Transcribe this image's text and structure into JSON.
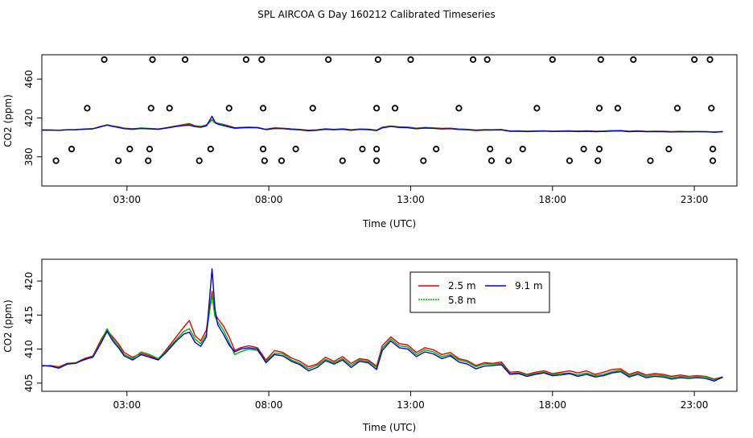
{
  "figure_title": "SPL AIRCOA G  Day 160212  Calibrated Timeseries",
  "colors": {
    "s25": "#e00000",
    "s58": "#00b000",
    "s91": "#0000d0"
  },
  "chart_data": [
    {
      "type": "line",
      "name": "top",
      "xlabel": "Time (UTC)",
      "ylabel": "CO2 (ppm)",
      "xlim": [
        0,
        24.5
      ],
      "ylim": [
        350,
        485
      ],
      "xticks": [
        3,
        8,
        13,
        18,
        23
      ],
      "xtick_labels": [
        "03:00",
        "08:00",
        "13:00",
        "18:00",
        "23:00"
      ],
      "yticks": [
        380,
        420,
        460
      ],
      "yticks_rotated_labels": [
        "380",
        "420",
        "460"
      ],
      "marker_series": {
        "name": "flagged samples",
        "points": [
          [
            2.2,
            480
          ],
          [
            3.9,
            480
          ],
          [
            5.05,
            480
          ],
          [
            7.2,
            480
          ],
          [
            7.75,
            480
          ],
          [
            10.1,
            480
          ],
          [
            11.85,
            480
          ],
          [
            13.0,
            480
          ],
          [
            15.2,
            480
          ],
          [
            15.7,
            480
          ],
          [
            18.0,
            480
          ],
          [
            19.7,
            480
          ],
          [
            20.85,
            480
          ],
          [
            23.0,
            480
          ],
          [
            23.55,
            480
          ],
          [
            1.6,
            430
          ],
          [
            3.85,
            430
          ],
          [
            4.5,
            430
          ],
          [
            6.6,
            430
          ],
          [
            7.8,
            430
          ],
          [
            9.55,
            430
          ],
          [
            11.8,
            430
          ],
          [
            12.45,
            430
          ],
          [
            14.7,
            430
          ],
          [
            17.45,
            430
          ],
          [
            19.65,
            430
          ],
          [
            20.3,
            430
          ],
          [
            22.4,
            430
          ],
          [
            23.6,
            430
          ],
          [
            1.05,
            388
          ],
          [
            3.1,
            388
          ],
          [
            3.8,
            388
          ],
          [
            5.95,
            388
          ],
          [
            7.8,
            388
          ],
          [
            8.95,
            388
          ],
          [
            11.3,
            388
          ],
          [
            11.8,
            388
          ],
          [
            13.9,
            388
          ],
          [
            15.8,
            388
          ],
          [
            16.95,
            388
          ],
          [
            19.1,
            388
          ],
          [
            19.65,
            388
          ],
          [
            22.1,
            388
          ],
          [
            23.65,
            388
          ],
          [
            0.5,
            376
          ],
          [
            2.7,
            376
          ],
          [
            3.75,
            376
          ],
          [
            5.55,
            376
          ],
          [
            7.85,
            376
          ],
          [
            8.45,
            376
          ],
          [
            10.6,
            376
          ],
          [
            11.8,
            376
          ],
          [
            13.45,
            376
          ],
          [
            15.85,
            376
          ],
          [
            16.45,
            376
          ],
          [
            18.6,
            376
          ],
          [
            19.6,
            376
          ],
          [
            21.45,
            376
          ],
          [
            23.65,
            376
          ]
        ]
      },
      "series_ref": "shared"
    },
    {
      "type": "line",
      "name": "bottom",
      "xlabel": "Time (UTC)",
      "ylabel": "CO2 (ppm)",
      "xlim": [
        0,
        24.5
      ],
      "ylim": [
        403.8,
        423.2
      ],
      "xticks": [
        3,
        8,
        13,
        18,
        23
      ],
      "xtick_labels": [
        "03:00",
        "08:00",
        "13:00",
        "18:00",
        "23:00"
      ],
      "yticks": [
        405,
        410,
        415,
        420
      ],
      "ytick_labels": [
        "405",
        "410",
        "415",
        "420"
      ],
      "legend": {
        "placement": "top-center",
        "entries": [
          "2.5 m",
          "5.8 m",
          "9.1 m"
        ]
      },
      "series_ref": "shared"
    }
  ],
  "series": [
    {
      "name": "2.5 m",
      "x": [
        0.0,
        0.3,
        0.6,
        0.9,
        1.2,
        1.5,
        1.8,
        2.1,
        2.3,
        2.5,
        2.7,
        2.9,
        3.2,
        3.5,
        3.8,
        4.1,
        4.4,
        4.7,
        5.0,
        5.2,
        5.4,
        5.6,
        5.8,
        6.0,
        6.1,
        6.2,
        6.4,
        6.6,
        6.8,
        7.0,
        7.3,
        7.6,
        7.9,
        8.2,
        8.5,
        8.8,
        9.1,
        9.4,
        9.7,
        10.0,
        10.3,
        10.6,
        10.9,
        11.2,
        11.5,
        11.8,
        12.0,
        12.3,
        12.6,
        12.9,
        13.2,
        13.5,
        13.8,
        14.1,
        14.4,
        14.7,
        15.0,
        15.3,
        15.6,
        15.9,
        16.2,
        16.5,
        16.8,
        17.1,
        17.4,
        17.7,
        18.0,
        18.3,
        18.6,
        18.9,
        19.2,
        19.5,
        19.8,
        20.1,
        20.4,
        20.7,
        21.0,
        21.3,
        21.6,
        21.9,
        22.2,
        22.5,
        22.8,
        23.1,
        23.4,
        23.7,
        24.0
      ],
      "y": [
        407.5,
        407.6,
        407.4,
        407.9,
        408.0,
        408.6,
        409.0,
        411.5,
        412.8,
        411.8,
        410.8,
        409.5,
        408.8,
        409.4,
        409.0,
        408.5,
        410.0,
        411.6,
        413.2,
        414.2,
        412.0,
        411.2,
        412.8,
        418.5,
        415.2,
        414.5,
        413.4,
        411.8,
        409.8,
        410.2,
        410.5,
        410.2,
        408.4,
        409.8,
        409.5,
        408.7,
        408.2,
        407.4,
        407.8,
        408.8,
        408.2,
        408.9,
        407.9,
        408.6,
        408.4,
        407.5,
        410.5,
        411.8,
        410.8,
        410.6,
        409.5,
        410.2,
        409.9,
        409.2,
        409.5,
        408.6,
        408.3,
        407.6,
        408.0,
        407.9,
        408.1,
        406.6,
        406.7,
        406.3,
        406.6,
        406.8,
        406.4,
        406.6,
        406.8,
        406.5,
        406.8,
        406.3,
        406.6,
        407.0,
        407.1,
        406.3,
        406.7,
        406.2,
        406.4,
        406.3,
        406.0,
        406.2,
        406.0,
        406.1,
        406.0,
        405.6,
        405.9
      ]
    },
    {
      "name": "5.8 m",
      "x": [
        0.0,
        0.3,
        0.6,
        0.9,
        1.2,
        1.5,
        1.8,
        2.1,
        2.3,
        2.5,
        2.7,
        2.9,
        3.2,
        3.5,
        3.8,
        4.1,
        4.4,
        4.7,
        5.0,
        5.2,
        5.4,
        5.6,
        5.8,
        6.0,
        6.1,
        6.2,
        6.4,
        6.6,
        6.8,
        7.0,
        7.3,
        7.6,
        7.9,
        8.2,
        8.5,
        8.8,
        9.1,
        9.4,
        9.7,
        10.0,
        10.3,
        10.6,
        10.9,
        11.2,
        11.5,
        11.8,
        12.0,
        12.3,
        12.6,
        12.9,
        13.2,
        13.5,
        13.8,
        14.1,
        14.4,
        14.7,
        15.0,
        15.3,
        15.6,
        15.9,
        16.2,
        16.5,
        16.8,
        17.1,
        17.4,
        17.7,
        18.0,
        18.3,
        18.6,
        18.9,
        19.2,
        19.5,
        19.8,
        20.1,
        20.4,
        20.7,
        21.0,
        21.3,
        21.6,
        21.9,
        22.2,
        22.5,
        22.8,
        23.1,
        23.4,
        23.7,
        24.0
      ],
      "y": [
        407.6,
        407.5,
        407.3,
        407.8,
        408.0,
        408.4,
        408.9,
        411.2,
        413.0,
        411.5,
        410.5,
        409.2,
        408.6,
        409.6,
        409.2,
        408.6,
        409.8,
        411.2,
        412.6,
        413.0,
        411.5,
        410.8,
        412.2,
        418.0,
        414.8,
        414.0,
        412.8,
        411.0,
        409.2,
        409.6,
        410.0,
        409.8,
        408.2,
        409.4,
        409.3,
        408.4,
        407.9,
        407.1,
        407.6,
        408.5,
        408.0,
        408.6,
        407.6,
        408.4,
        408.2,
        407.3,
        410.1,
        411.5,
        410.5,
        410.3,
        409.2,
        409.9,
        409.6,
        408.9,
        409.2,
        408.4,
        408.1,
        407.4,
        407.8,
        407.8,
        407.9,
        406.4,
        406.5,
        406.2,
        406.4,
        406.6,
        406.2,
        406.4,
        406.5,
        406.2,
        406.5,
        406.1,
        406.3,
        406.7,
        406.9,
        406.1,
        406.5,
        406.0,
        406.2,
        406.1,
        405.8,
        406.0,
        405.9,
        406.0,
        405.9,
        405.5,
        405.8
      ]
    },
    {
      "name": "9.1 m",
      "x": [
        0.0,
        0.3,
        0.6,
        0.9,
        1.2,
        1.5,
        1.8,
        2.1,
        2.3,
        2.5,
        2.7,
        2.9,
        3.2,
        3.5,
        3.8,
        4.1,
        4.4,
        4.7,
        5.0,
        5.2,
        5.4,
        5.6,
        5.8,
        6.0,
        6.1,
        6.2,
        6.4,
        6.6,
        6.8,
        7.0,
        7.3,
        7.6,
        7.9,
        8.2,
        8.5,
        8.8,
        9.1,
        9.4,
        9.7,
        10.0,
        10.3,
        10.6,
        10.9,
        11.2,
        11.5,
        11.8,
        12.0,
        12.3,
        12.6,
        12.9,
        13.2,
        13.5,
        13.8,
        14.1,
        14.4,
        14.7,
        15.0,
        15.3,
        15.6,
        15.9,
        16.2,
        16.5,
        16.8,
        17.1,
        17.4,
        17.7,
        18.0,
        18.3,
        18.6,
        18.9,
        19.2,
        19.5,
        19.8,
        20.1,
        20.4,
        20.7,
        21.0,
        21.3,
        21.6,
        21.9,
        22.2,
        22.5,
        22.8,
        23.1,
        23.4,
        23.7,
        24.0
      ],
      "y": [
        407.6,
        407.5,
        407.2,
        407.8,
        407.9,
        408.5,
        408.8,
        411.0,
        412.6,
        411.2,
        410.2,
        409.0,
        408.4,
        409.2,
        408.8,
        408.4,
        409.6,
        411.0,
        412.2,
        412.5,
        411.0,
        410.4,
        411.8,
        421.8,
        416.0,
        413.6,
        412.2,
        410.6,
        409.6,
        410.0,
        410.2,
        410.0,
        408.0,
        409.2,
        409.0,
        408.2,
        407.7,
        406.8,
        407.3,
        408.3,
        407.8,
        408.4,
        407.3,
        408.2,
        408.0,
        407.0,
        409.8,
        411.2,
        410.2,
        410.0,
        408.9,
        409.6,
        409.3,
        408.6,
        409.0,
        408.1,
        407.8,
        407.1,
        407.5,
        407.6,
        407.7,
        406.3,
        406.4,
        406.0,
        406.3,
        406.5,
        406.1,
        406.2,
        406.4,
        406.0,
        406.3,
        405.9,
        406.1,
        406.5,
        406.7,
        405.9,
        406.3,
        405.8,
        406.0,
        405.9,
        405.6,
        405.8,
        405.7,
        405.8,
        405.7,
        405.3,
        405.9
      ]
    }
  ]
}
